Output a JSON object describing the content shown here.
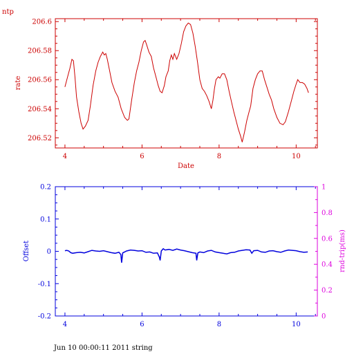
{
  "colors": {
    "top": "#cc0000",
    "offset": "#0000dd",
    "rtt": "#dd00dd"
  },
  "page": {
    "title": "ntp",
    "footer": "Jun 10 00:00:11 2011 string"
  },
  "chart_data": [
    {
      "type": "line",
      "title": "",
      "xlabel": "Date",
      "ylabel": "rate",
      "xlim": [
        3.75,
        10.55
      ],
      "ylim": [
        206.513,
        206.602
      ],
      "xticks": [
        "4",
        "6",
        "8",
        "10"
      ],
      "yticks": [
        "206.52",
        "206.54",
        "206.56",
        "206.58",
        "206.6"
      ],
      "grid": false,
      "series": [
        {
          "name": "",
          "points": [
            [
              4.0,
              206.555
            ],
            [
              4.07,
              206.562
            ],
            [
              4.13,
              206.568
            ],
            [
              4.18,
              206.574
            ],
            [
              4.22,
              206.573
            ],
            [
              4.26,
              206.562
            ],
            [
              4.3,
              206.548
            ],
            [
              4.36,
              206.538
            ],
            [
              4.42,
              206.53
            ],
            [
              4.47,
              206.526
            ],
            [
              4.53,
              206.528
            ],
            [
              4.6,
              206.532
            ],
            [
              4.66,
              206.542
            ],
            [
              4.73,
              206.556
            ],
            [
              4.8,
              206.566
            ],
            [
              4.86,
              206.572
            ],
            [
              4.92,
              206.576
            ],
            [
              4.98,
              206.579
            ],
            [
              5.02,
              206.577
            ],
            [
              5.06,
              206.578
            ],
            [
              5.1,
              206.574
            ],
            [
              5.16,
              206.566
            ],
            [
              5.22,
              206.558
            ],
            [
              5.3,
              206.552
            ],
            [
              5.38,
              206.548
            ],
            [
              5.46,
              206.54
            ],
            [
              5.55,
              206.534
            ],
            [
              5.62,
              206.532
            ],
            [
              5.66,
              206.533
            ],
            [
              5.73,
              206.546
            ],
            [
              5.8,
              206.558
            ],
            [
              5.86,
              206.566
            ],
            [
              5.92,
              206.572
            ],
            [
              5.98,
              206.58
            ],
            [
              6.04,
              206.586
            ],
            [
              6.08,
              206.587
            ],
            [
              6.12,
              206.584
            ],
            [
              6.18,
              206.579
            ],
            [
              6.24,
              206.576
            ],
            [
              6.3,
              206.568
            ],
            [
              6.36,
              206.562
            ],
            [
              6.42,
              206.556
            ],
            [
              6.47,
              206.552
            ],
            [
              6.52,
              206.551
            ],
            [
              6.58,
              206.556
            ],
            [
              6.62,
              206.562
            ],
            [
              6.68,
              206.566
            ],
            [
              6.72,
              206.573
            ],
            [
              6.76,
              206.577
            ],
            [
              6.8,
              206.574
            ],
            [
              6.84,
              206.578
            ],
            [
              6.9,
              206.574
            ],
            [
              6.96,
              206.578
            ],
            [
              7.02,
              206.585
            ],
            [
              7.08,
              206.593
            ],
            [
              7.14,
              206.597
            ],
            [
              7.2,
              206.599
            ],
            [
              7.26,
              206.598
            ],
            [
              7.32,
              206.592
            ],
            [
              7.38,
              206.583
            ],
            [
              7.44,
              206.572
            ],
            [
              7.5,
              206.56
            ],
            [
              7.56,
              206.554
            ],
            [
              7.62,
              206.552
            ],
            [
              7.68,
              206.549
            ],
            [
              7.74,
              206.545
            ],
            [
              7.8,
              206.54
            ],
            [
              7.84,
              206.546
            ],
            [
              7.88,
              206.554
            ],
            [
              7.92,
              206.56
            ],
            [
              7.98,
              206.562
            ],
            [
              8.02,
              206.561
            ],
            [
              8.08,
              206.564
            ],
            [
              8.14,
              206.564
            ],
            [
              8.2,
              206.56
            ],
            [
              8.26,
              206.552
            ],
            [
              8.32,
              206.545
            ],
            [
              8.38,
              206.538
            ],
            [
              8.44,
              206.532
            ],
            [
              8.5,
              206.526
            ],
            [
              8.56,
              206.521
            ],
            [
              8.6,
              206.517
            ],
            [
              8.66,
              206.524
            ],
            [
              8.72,
              206.532
            ],
            [
              8.78,
              206.538
            ],
            [
              8.82,
              206.542
            ],
            [
              8.88,
              206.554
            ],
            [
              8.94,
              206.56
            ],
            [
              9.0,
              206.564
            ],
            [
              9.06,
              206.566
            ],
            [
              9.12,
              206.566
            ],
            [
              9.18,
              206.56
            ],
            [
              9.24,
              206.555
            ],
            [
              9.3,
              206.55
            ],
            [
              9.36,
              206.546
            ],
            [
              9.42,
              206.54
            ],
            [
              9.5,
              206.534
            ],
            [
              9.58,
              206.53
            ],
            [
              9.66,
              206.529
            ],
            [
              9.72,
              206.531
            ],
            [
              9.8,
              206.538
            ],
            [
              9.88,
              206.546
            ],
            [
              9.94,
              206.552
            ],
            [
              10.0,
              206.557
            ],
            [
              10.04,
              206.56
            ],
            [
              10.1,
              206.558
            ],
            [
              10.16,
              206.558
            ],
            [
              10.22,
              206.557
            ],
            [
              10.28,
              206.554
            ],
            [
              10.32,
              206.551
            ]
          ]
        }
      ]
    },
    {
      "type": "line",
      "title": "",
      "xlabel": "",
      "ylabel": "Offset",
      "y2label": "rnd-trip(ms)",
      "xlim": [
        3.75,
        10.55
      ],
      "ylim": [
        -0.2,
        0.2
      ],
      "y2lim": [
        0,
        1
      ],
      "xticks": [
        "4",
        "6",
        "8",
        "10"
      ],
      "yticks": [
        "-0.2",
        "-0.1",
        "0",
        "0.1",
        "0.2"
      ],
      "y2ticks": [
        "0",
        "0.2",
        "0.4",
        "0.6",
        "0.8",
        "1"
      ],
      "grid": false,
      "series": [
        {
          "name": "",
          "points": [
            [
              4.0,
              0.002
            ],
            [
              4.05,
              0.003
            ],
            [
              4.1,
              0.001
            ],
            [
              4.15,
              -0.004
            ],
            [
              4.2,
              -0.006
            ],
            [
              4.3,
              -0.004
            ],
            [
              4.4,
              -0.003
            ],
            [
              4.5,
              -0.005
            ],
            [
              4.6,
              -0.001
            ],
            [
              4.7,
              0.003
            ],
            [
              4.8,
              0.001
            ],
            [
              4.9,
              0.0
            ],
            [
              5.0,
              0.002
            ],
            [
              5.1,
              -0.001
            ],
            [
              5.2,
              -0.004
            ],
            [
              5.3,
              -0.006
            ],
            [
              5.4,
              -0.003
            ],
            [
              5.45,
              -0.01
            ],
            [
              5.47,
              -0.035
            ],
            [
              5.5,
              -0.005
            ],
            [
              5.6,
              0.001
            ],
            [
              5.7,
              0.004
            ],
            [
              5.8,
              0.003
            ],
            [
              5.9,
              0.001
            ],
            [
              6.0,
              0.002
            ],
            [
              6.1,
              -0.003
            ],
            [
              6.2,
              -0.002
            ],
            [
              6.3,
              -0.006
            ],
            [
              6.4,
              -0.005
            ],
            [
              6.45,
              -0.018
            ],
            [
              6.47,
              -0.028
            ],
            [
              6.5,
              0.001
            ],
            [
              6.55,
              0.008
            ],
            [
              6.6,
              0.004
            ],
            [
              6.7,
              0.006
            ],
            [
              6.8,
              0.003
            ],
            [
              6.9,
              0.007
            ],
            [
              7.0,
              0.004
            ],
            [
              7.1,
              0.002
            ],
            [
              7.2,
              -0.001
            ],
            [
              7.3,
              -0.004
            ],
            [
              7.4,
              -0.006
            ],
            [
              7.42,
              -0.028
            ],
            [
              7.45,
              -0.005
            ],
            [
              7.5,
              -0.002
            ],
            [
              7.6,
              -0.004
            ],
            [
              7.7,
              0.001
            ],
            [
              7.8,
              0.003
            ],
            [
              7.9,
              -0.002
            ],
            [
              8.0,
              -0.004
            ],
            [
              8.1,
              -0.006
            ],
            [
              8.2,
              -0.008
            ],
            [
              8.3,
              -0.004
            ],
            [
              8.4,
              -0.003
            ],
            [
              8.5,
              0.001
            ],
            [
              8.6,
              0.003
            ],
            [
              8.7,
              0.005
            ],
            [
              8.8,
              0.004
            ],
            [
              8.85,
              -0.006
            ],
            [
              8.9,
              0.002
            ],
            [
              9.0,
              0.003
            ],
            [
              9.1,
              -0.002
            ],
            [
              9.2,
              -0.003
            ],
            [
              9.3,
              0.001
            ],
            [
              9.4,
              0.002
            ],
            [
              9.5,
              -0.001
            ],
            [
              9.6,
              -0.003
            ],
            [
              9.7,
              0.001
            ],
            [
              9.8,
              0.004
            ],
            [
              9.9,
              0.003
            ],
            [
              10.0,
              0.002
            ],
            [
              10.1,
              -0.001
            ],
            [
              10.2,
              -0.003
            ],
            [
              10.3,
              -0.002
            ]
          ]
        }
      ]
    }
  ]
}
